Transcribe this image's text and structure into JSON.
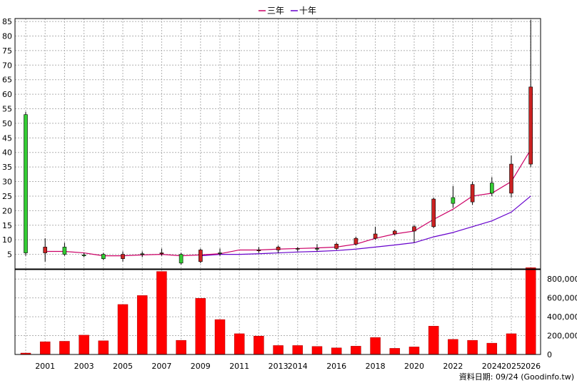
{
  "chart_data": {
    "type": "candlestick",
    "legend": {
      "placement": "top-center",
      "items": [
        {
          "label": "三年",
          "color": "#cc0066"
        },
        {
          "label": "十年",
          "color": "#6600cc"
        }
      ]
    },
    "x_labels": [
      "2001",
      "2003",
      "2005",
      "2007",
      "2009",
      "2011",
      "2013",
      "2014",
      "2016",
      "2018",
      "2020",
      "2022",
      "2024",
      "2025",
      "2026"
    ],
    "price_axis": {
      "range": [
        0,
        86
      ],
      "ticks": [
        5,
        10,
        15,
        20,
        25,
        30,
        35,
        40,
        45,
        50,
        55,
        60,
        65,
        70,
        75,
        80,
        85
      ],
      "side": "left"
    },
    "volume_axis": {
      "range": [
        0,
        900000
      ],
      "ticks": [
        0,
        200000,
        400000,
        600000,
        800000
      ],
      "tick_labels": [
        "0",
        "200,000",
        "400,000",
        "600,000",
        "800,000"
      ],
      "side": "right"
    },
    "grid": true,
    "footer": "資料日期: 09/24  (Goodinfo.tw)",
    "colors": {
      "up": "#33cc33",
      "down": "#cc2222",
      "volume": "#ff0000",
      "grid": "#b0b0b0",
      "avg3": "#cc0066",
      "avg10": "#6600cc"
    },
    "candles": [
      {
        "year": 2000,
        "open": 5.5,
        "close": 53,
        "high": 54,
        "low": 4.5
      },
      {
        "year": 2001,
        "open": 7.5,
        "close": 5.5,
        "high": 10.5,
        "low": 2.5
      },
      {
        "year": 2002,
        "open": 5,
        "close": 7.5,
        "high": 9,
        "low": 4.5
      },
      {
        "year": 2003,
        "open": 4.5,
        "close": 4.8,
        "high": 5.5,
        "low": 4
      },
      {
        "year": 2004,
        "open": 3.5,
        "close": 5,
        "high": 5.5,
        "low": 3
      },
      {
        "year": 2005,
        "open": 5,
        "close": 3.5,
        "high": 6,
        "low": 2.5
      },
      {
        "year": 2006,
        "open": 5,
        "close": 5.2,
        "high": 6,
        "low": 4
      },
      {
        "year": 2007,
        "open": 5.5,
        "close": 5.2,
        "high": 7,
        "low": 4.5
      },
      {
        "year": 2008,
        "open": 2,
        "close": 5,
        "high": 5.5,
        "low": 1.5
      },
      {
        "year": 2009,
        "open": 6.5,
        "close": 2.5,
        "high": 7,
        "low": 2
      },
      {
        "year": 2010,
        "open": 5.5,
        "close": 5.5,
        "high": 7,
        "low": 4.5
      },
      {
        "year": 2012,
        "open": 6.5,
        "close": 6.2,
        "high": 7.5,
        "low": 5.5
      },
      {
        "year": 2013,
        "open": 7.5,
        "close": 6.5,
        "high": 8,
        "low": 5.5
      },
      {
        "year": 2014,
        "open": 7,
        "close": 6.8,
        "high": 7.5,
        "low": 6
      },
      {
        "year": 2015,
        "open": 7,
        "close": 7,
        "high": 8.5,
        "low": 6
      },
      {
        "year": 2016,
        "open": 8.5,
        "close": 7,
        "high": 9,
        "low": 6.5
      },
      {
        "year": 2017,
        "open": 10.5,
        "close": 8.5,
        "high": 11,
        "low": 8
      },
      {
        "year": 2018,
        "open": 12,
        "close": 10.5,
        "high": 14.5,
        "low": 10
      },
      {
        "year": 2019,
        "open": 13,
        "close": 12,
        "high": 13.5,
        "low": 11.5
      },
      {
        "year": 2020,
        "open": 14.5,
        "close": 13,
        "high": 15,
        "low": 9
      },
      {
        "year": 2021,
        "open": 24,
        "close": 14.5,
        "high": 24.5,
        "low": 14
      },
      {
        "year": 2022,
        "open": 22.5,
        "close": 24.5,
        "high": 28.5,
        "low": 21
      },
      {
        "year": 2023,
        "open": 29,
        "close": 23,
        "high": 30,
        "low": 22
      },
      {
        "year": 2024,
        "open": 26,
        "close": 29.5,
        "high": 31.5,
        "low": 25
      },
      {
        "year": 2025,
        "open": 36,
        "close": 26,
        "high": 39,
        "low": 24.5
      },
      {
        "year": 2026,
        "open": 62.5,
        "close": 36,
        "high": 85.5,
        "low": 35
      }
    ],
    "volume": [
      {
        "year": 2000,
        "value": 15000
      },
      {
        "year": 2001,
        "value": 135000
      },
      {
        "year": 2002,
        "value": 140000
      },
      {
        "year": 2003,
        "value": 205000
      },
      {
        "year": 2004,
        "value": 145000
      },
      {
        "year": 2005,
        "value": 530000
      },
      {
        "year": 2006,
        "value": 625000
      },
      {
        "year": 2007,
        "value": 880000
      },
      {
        "year": 2008,
        "value": 150000
      },
      {
        "year": 2009,
        "value": 595000
      },
      {
        "year": 2010,
        "value": 370000
      },
      {
        "year": 2011,
        "value": 220000
      },
      {
        "year": 2012,
        "value": 195000
      },
      {
        "year": 2013,
        "value": 95000
      },
      {
        "year": 2014,
        "value": 95000
      },
      {
        "year": 2015,
        "value": 85000
      },
      {
        "year": 2016,
        "value": 70000
      },
      {
        "year": 2017,
        "value": 88000
      },
      {
        "year": 2018,
        "value": 180000
      },
      {
        "year": 2019,
        "value": 65000
      },
      {
        "year": 2020,
        "value": 80000
      },
      {
        "year": 2021,
        "value": 300000
      },
      {
        "year": 2022,
        "value": 160000
      },
      {
        "year": 2023,
        "value": 150000
      },
      {
        "year": 2024,
        "value": 120000
      },
      {
        "year": 2025,
        "value": 220000
      },
      {
        "year": 2026,
        "value": 920000
      }
    ],
    "avg3": [
      {
        "year": 2001,
        "value": 6
      },
      {
        "year": 2002,
        "value": 6
      },
      {
        "year": 2003,
        "value": 5.5
      },
      {
        "year": 2004,
        "value": 4.5
      },
      {
        "year": 2005,
        "value": 4.5
      },
      {
        "year": 2006,
        "value": 4.8
      },
      {
        "year": 2007,
        "value": 5
      },
      {
        "year": 2008,
        "value": 4.5
      },
      {
        "year": 2009,
        "value": 4.8
      },
      {
        "year": 2010,
        "value": 5.2
      },
      {
        "year": 2011,
        "value": 6.5
      },
      {
        "year": 2012,
        "value": 6.5
      },
      {
        "year": 2013,
        "value": 6.8
      },
      {
        "year": 2014,
        "value": 7
      },
      {
        "year": 2015,
        "value": 7.2
      },
      {
        "year": 2016,
        "value": 7.5
      },
      {
        "year": 2017,
        "value": 8.5
      },
      {
        "year": 2018,
        "value": 10.5
      },
      {
        "year": 2019,
        "value": 12
      },
      {
        "year": 2020,
        "value": 13
      },
      {
        "year": 2021,
        "value": 17
      },
      {
        "year": 2022,
        "value": 20.5
      },
      {
        "year": 2023,
        "value": 25
      },
      {
        "year": 2024,
        "value": 26
      },
      {
        "year": 2025,
        "value": 30
      },
      {
        "year": 2026,
        "value": 41
      }
    ],
    "avg10": [
      {
        "year": 2009,
        "value": 4.5
      },
      {
        "year": 2010,
        "value": 5
      },
      {
        "year": 2011,
        "value": 5
      },
      {
        "year": 2012,
        "value": 5.2
      },
      {
        "year": 2013,
        "value": 5.5
      },
      {
        "year": 2014,
        "value": 5.8
      },
      {
        "year": 2015,
        "value": 6
      },
      {
        "year": 2016,
        "value": 6.3
      },
      {
        "year": 2017,
        "value": 6.8
      },
      {
        "year": 2018,
        "value": 7.5
      },
      {
        "year": 2019,
        "value": 8.2
      },
      {
        "year": 2020,
        "value": 9
      },
      {
        "year": 2021,
        "value": 11
      },
      {
        "year": 2022,
        "value": 12.5
      },
      {
        "year": 2023,
        "value": 14.5
      },
      {
        "year": 2024,
        "value": 16.5
      },
      {
        "year": 2025,
        "value": 19.5
      },
      {
        "year": 2026,
        "value": 25
      }
    ]
  }
}
